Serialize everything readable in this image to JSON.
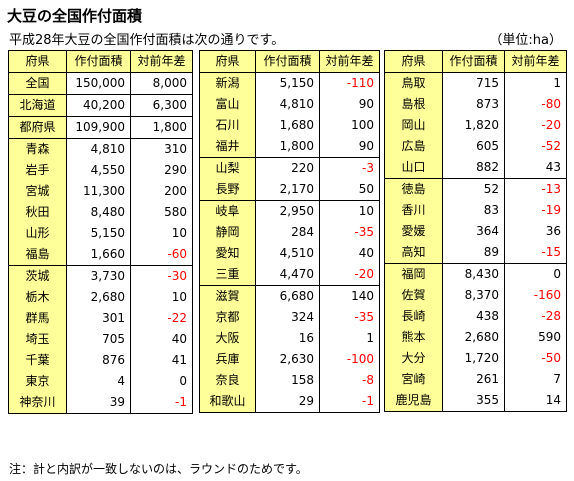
{
  "title": "大豆の全国作付面積",
  "subtitle": "平成28年大豆の全国作付面積は次の通りです。",
  "unit": "（単位:ha）",
  "note": "注：計と内訳が一致しないのは、ラウンドのためです。",
  "headers": [
    "府県",
    "作付面積",
    "対前年差"
  ],
  "col1": [
    {
      "pref": "全国",
      "area": "150,000",
      "diff": "8,000"
    },
    {
      "pref": "北海道",
      "area": "40,200",
      "diff": "6,300"
    },
    {
      "pref": "都府県",
      "area": "109,900",
      "diff": "1,800"
    },
    {
      "pref": "青森",
      "area": "4,810",
      "diff": "310"
    },
    {
      "pref": "岩手",
      "area": "4,550",
      "diff": "290"
    },
    {
      "pref": "宮城",
      "area": "11,300",
      "diff": "200"
    },
    {
      "pref": "秋田",
      "area": "8,480",
      "diff": "580"
    },
    {
      "pref": "山形",
      "area": "5,150",
      "diff": "10"
    },
    {
      "pref": "福島",
      "area": "1,660",
      "diff": "-60"
    },
    {
      "pref": "茨城",
      "area": "3,730",
      "diff": "-30"
    },
    {
      "pref": "栃木",
      "area": "2,680",
      "diff": "10"
    },
    {
      "pref": "群馬",
      "area": "301",
      "diff": "-22"
    },
    {
      "pref": "埼玉",
      "area": "705",
      "diff": "40"
    },
    {
      "pref": "千葉",
      "area": "876",
      "diff": "41"
    },
    {
      "pref": "東京",
      "area": "4",
      "diff": "0"
    },
    {
      "pref": "神奈川",
      "area": "39",
      "diff": "-1"
    }
  ],
  "col2": [
    {
      "pref": "新潟",
      "area": "5,150",
      "diff": "-110"
    },
    {
      "pref": "富山",
      "area": "4,810",
      "diff": "90"
    },
    {
      "pref": "石川",
      "area": "1,680",
      "diff": "100"
    },
    {
      "pref": "福井",
      "area": "1,800",
      "diff": "90"
    },
    {
      "pref": "山梨",
      "area": "220",
      "diff": "-3"
    },
    {
      "pref": "長野",
      "area": "2,170",
      "diff": "50"
    },
    {
      "pref": "岐阜",
      "area": "2,950",
      "diff": "10"
    },
    {
      "pref": "静岡",
      "area": "284",
      "diff": "-35"
    },
    {
      "pref": "愛知",
      "area": "4,510",
      "diff": "40"
    },
    {
      "pref": "三重",
      "area": "4,470",
      "diff": "-20"
    },
    {
      "pref": "滋賀",
      "area": "6,680",
      "diff": "140"
    },
    {
      "pref": "京都",
      "area": "324",
      "diff": "-35"
    },
    {
      "pref": "大阪",
      "area": "16",
      "diff": "1"
    },
    {
      "pref": "兵庫",
      "area": "2,630",
      "diff": "-100"
    },
    {
      "pref": "奈良",
      "area": "158",
      "diff": "-8"
    },
    {
      "pref": "和歌山",
      "area": "29",
      "diff": "-1"
    }
  ],
  "col3": [
    {
      "pref": "鳥取",
      "area": "715",
      "diff": "1"
    },
    {
      "pref": "島根",
      "area": "873",
      "diff": "-80"
    },
    {
      "pref": "岡山",
      "area": "1,820",
      "diff": "-20"
    },
    {
      "pref": "広島",
      "area": "605",
      "diff": "-52"
    },
    {
      "pref": "山口",
      "area": "882",
      "diff": "43"
    },
    {
      "pref": "徳島",
      "area": "52",
      "diff": "-13"
    },
    {
      "pref": "香川",
      "area": "83",
      "diff": "-19"
    },
    {
      "pref": "愛媛",
      "area": "364",
      "diff": "36"
    },
    {
      "pref": "高知",
      "area": "89",
      "diff": "-15"
    },
    {
      "pref": "福岡",
      "area": "8,430",
      "diff": "0"
    },
    {
      "pref": "佐賀",
      "area": "8,370",
      "diff": "-160"
    },
    {
      "pref": "長崎",
      "area": "438",
      "diff": "-28"
    },
    {
      "pref": "熊本",
      "area": "2,680",
      "diff": "590"
    },
    {
      "pref": "大分",
      "area": "1,720",
      "diff": "-50"
    },
    {
      "pref": "宮崎",
      "area": "261",
      "diff": "7"
    },
    {
      "pref": "鹿児島",
      "area": "355",
      "diff": "14"
    }
  ]
}
